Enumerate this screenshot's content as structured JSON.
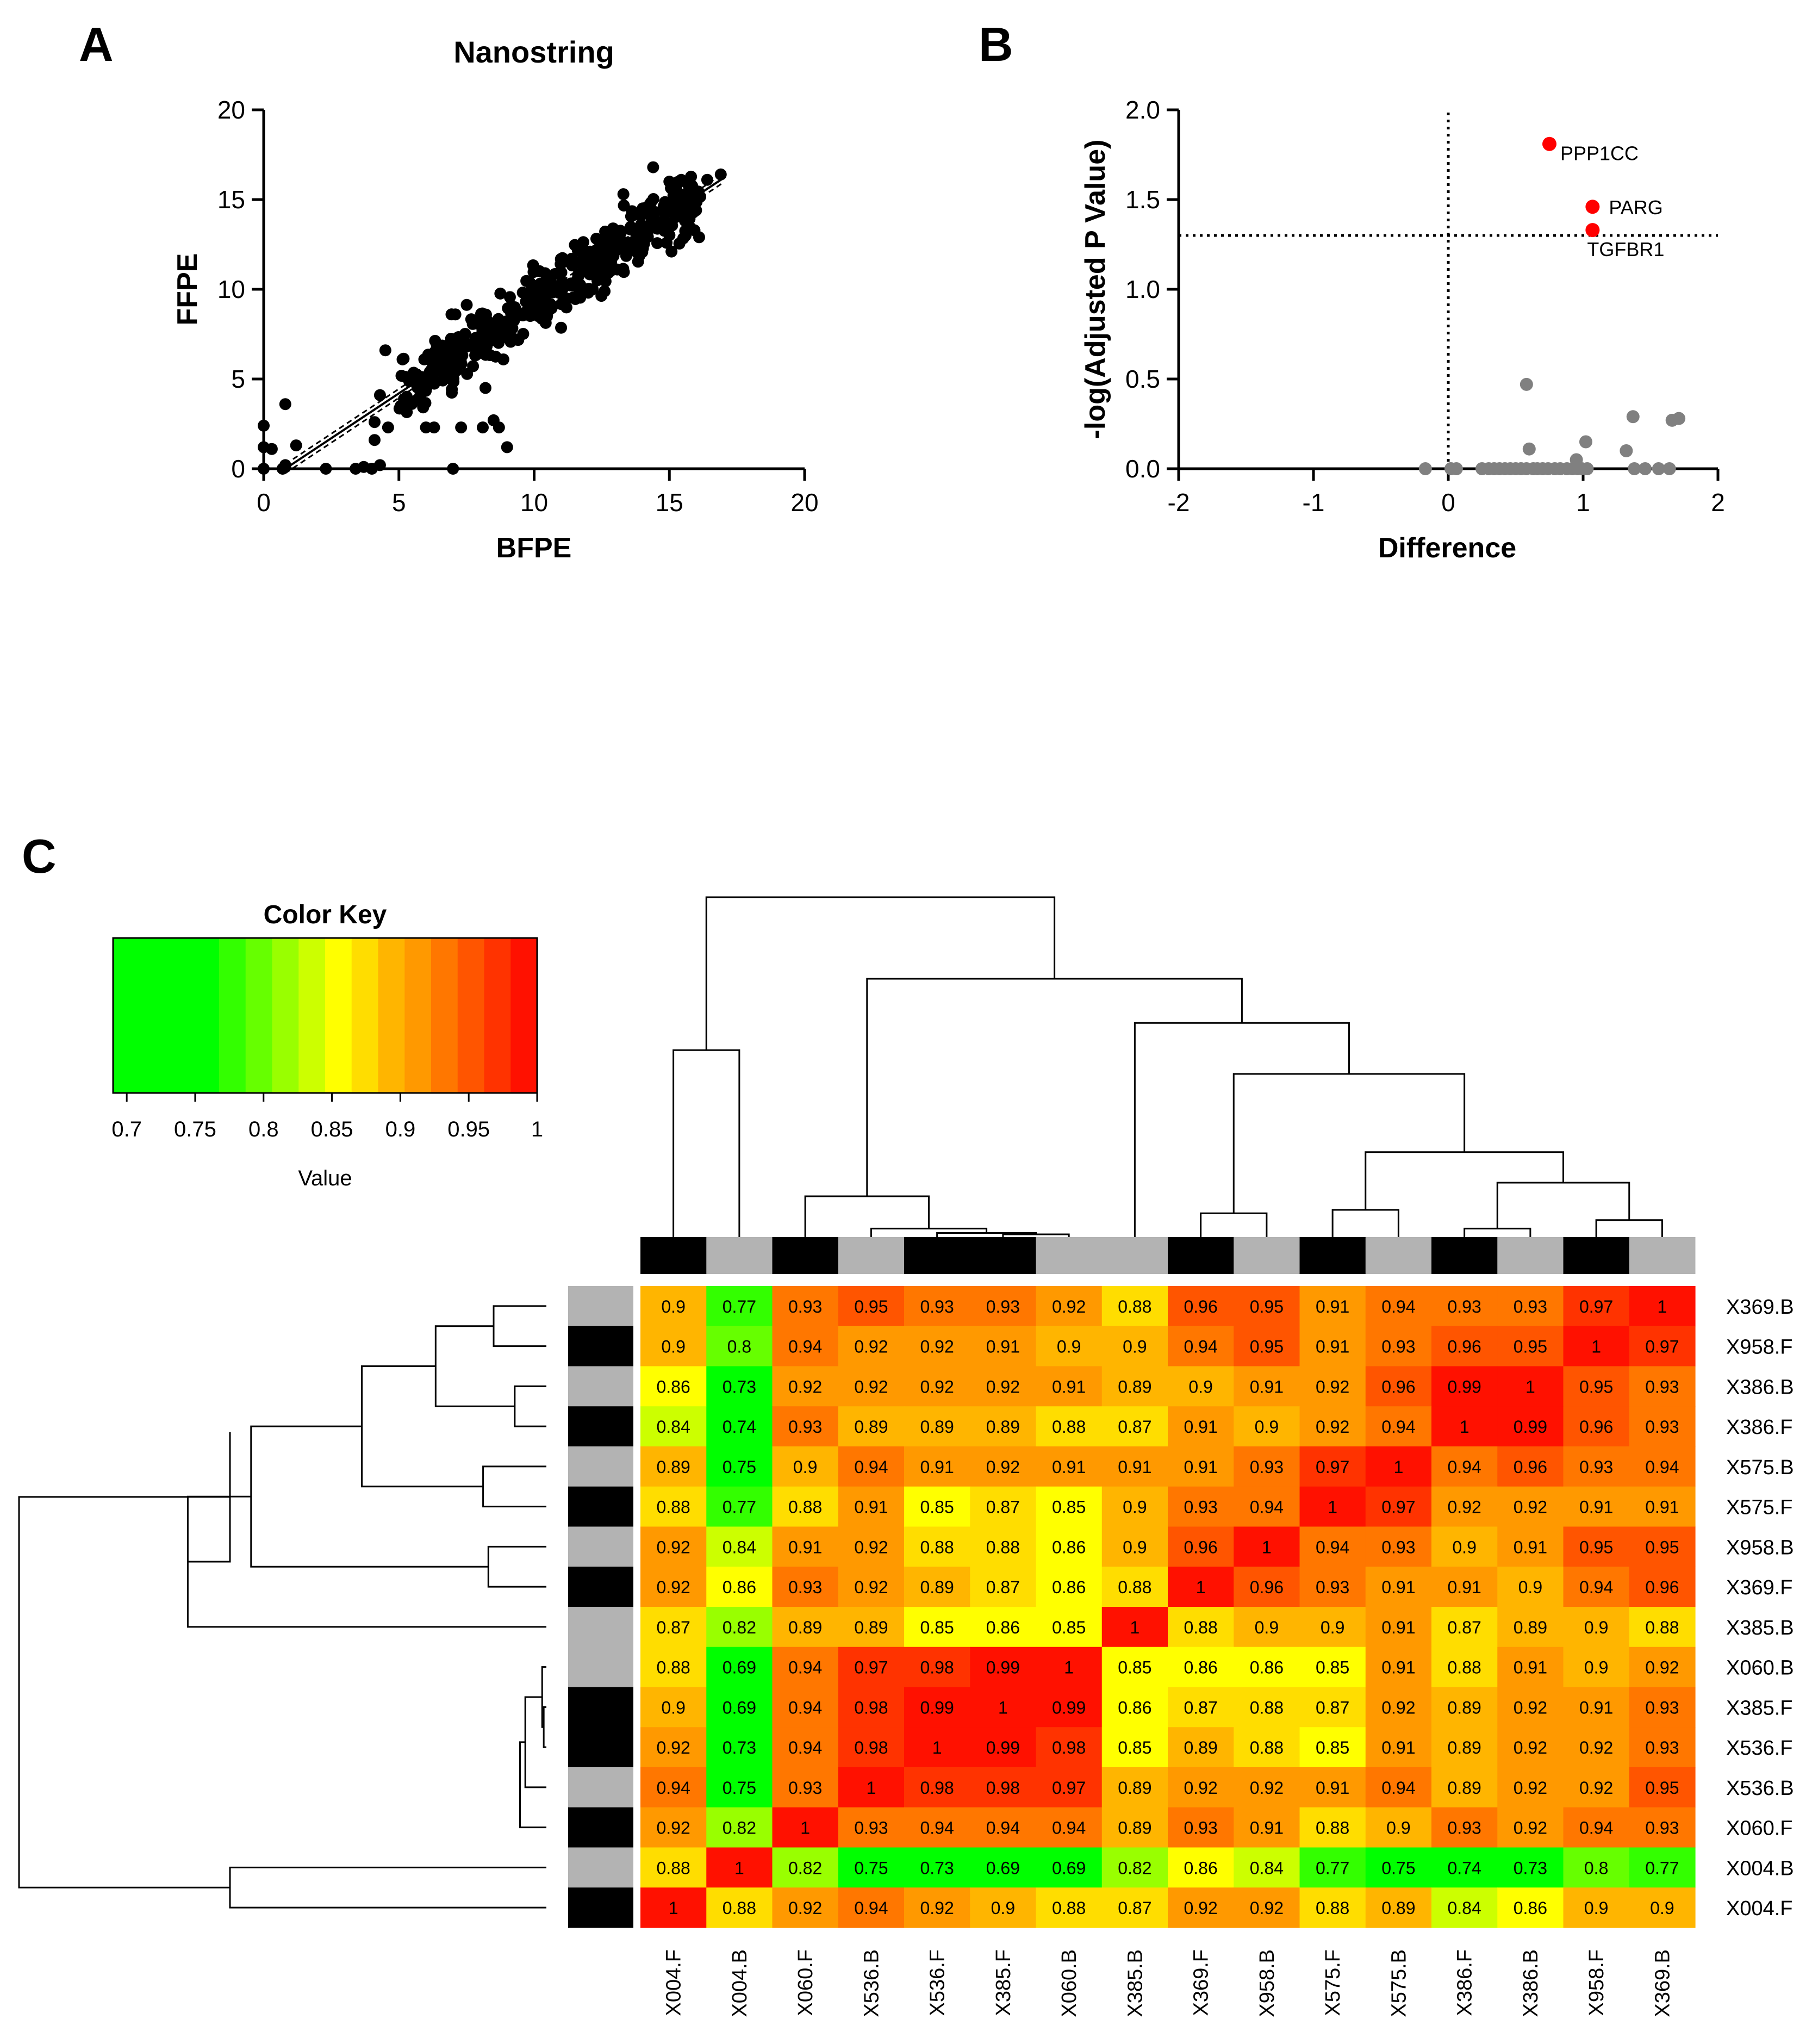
{
  "panels": {
    "a": "A",
    "b": "B",
    "c": "C"
  },
  "chart_data": [
    {
      "id": "A",
      "type": "scatter",
      "title": "Nanostring",
      "xlabel": "BFPE",
      "ylabel": "FFPE",
      "xlim": [
        0,
        20
      ],
      "ylim": [
        0,
        20
      ],
      "xticks": [
        "0",
        "5",
        "10",
        "15",
        "20"
      ],
      "yticks": [
        "0",
        "5",
        "10",
        "15",
        "20"
      ],
      "fit": {
        "slope": 1.0,
        "intercept": -0.8,
        "x_range": [
          0.8,
          17.0
        ]
      },
      "band": {
        "offset": 0.25
      },
      "outliers": [
        [
          0,
          0
        ],
        [
          0,
          1.2
        ],
        [
          0,
          2.4
        ],
        [
          0.3,
          1.1
        ],
        [
          0.7,
          0
        ],
        [
          0.8,
          0.2
        ],
        [
          0.8,
          3.6
        ],
        [
          1.2,
          1.3
        ],
        [
          2.3,
          0
        ],
        [
          3.4,
          0
        ],
        [
          3.7,
          0.1
        ],
        [
          4.0,
          0
        ],
        [
          4.3,
          0.2
        ],
        [
          4.1,
          1.6
        ],
        [
          4.1,
          2.6
        ],
        [
          4.3,
          4.1
        ],
        [
          4.6,
          2.3
        ],
        [
          4.5,
          6.6
        ],
        [
          5.2,
          3.6
        ],
        [
          6.0,
          2.3
        ],
        [
          6.3,
          2.3
        ],
        [
          7.0,
          0
        ],
        [
          7.3,
          2.3
        ],
        [
          6.4,
          6.9
        ],
        [
          8.1,
          2.3
        ],
        [
          8.5,
          2.7
        ],
        [
          8.7,
          2.3
        ],
        [
          9.0,
          1.2
        ],
        [
          8.2,
          4.5
        ],
        [
          14.4,
          16.8
        ],
        [
          15.0,
          16.0
        ],
        [
          15.3,
          14.7
        ],
        [
          15.6,
          13.0
        ],
        [
          16.1,
          12.9
        ],
        [
          16.4,
          16.1
        ],
        [
          16.9,
          16.4
        ],
        [
          13.3,
          15.3
        ],
        [
          12.0,
          11.4
        ]
      ],
      "cloud": {
        "count": 430,
        "x_range": [
          5,
          16.2
        ],
        "slope": 1.0,
        "intercept": -0.8,
        "spread": 1.0
      }
    },
    {
      "id": "B",
      "type": "scatter",
      "xlabel": "Difference",
      "ylabel": "-log(Adjusted P Value)",
      "xlim": [
        -2,
        2
      ],
      "ylim": [
        0,
        2.0
      ],
      "xticks": [
        "-2",
        "-1",
        "0",
        "1",
        "2"
      ],
      "yticks": [
        "0.0",
        "0.5",
        "1.0",
        "1.5",
        "2.0"
      ],
      "hline": 1.3,
      "vline": 0,
      "significant": [
        {
          "x": 0.75,
          "y": 1.81,
          "label": "PPP1CC"
        },
        {
          "x": 1.07,
          "y": 1.46,
          "label": "PARG"
        },
        {
          "x": 1.07,
          "y": 1.33,
          "label": "TGFBR1"
        }
      ],
      "points": [
        [
          -0.17,
          0
        ],
        [
          0.02,
          0
        ],
        [
          0.06,
          0
        ],
        [
          0.25,
          0
        ],
        [
          0.3,
          0
        ],
        [
          0.34,
          0
        ],
        [
          0.38,
          0
        ],
        [
          0.42,
          0
        ],
        [
          0.46,
          0
        ],
        [
          0.5,
          0
        ],
        [
          0.54,
          0
        ],
        [
          0.58,
          0
        ],
        [
          0.63,
          0
        ],
        [
          0.66,
          0
        ],
        [
          0.7,
          0
        ],
        [
          0.74,
          0
        ],
        [
          0.79,
          0
        ],
        [
          0.83,
          0
        ],
        [
          0.88,
          0
        ],
        [
          0.92,
          0
        ],
        [
          0.96,
          0
        ],
        [
          0.99,
          0
        ],
        [
          1.03,
          0
        ],
        [
          0.6,
          0.11
        ],
        [
          0.95,
          0.05
        ],
        [
          0.58,
          0.47
        ],
        [
          1.02,
          0.15
        ],
        [
          1.32,
          0.1
        ],
        [
          1.37,
          0.29
        ],
        [
          1.38,
          0
        ],
        [
          1.46,
          0
        ],
        [
          1.56,
          0
        ],
        [
          1.64,
          0
        ],
        [
          1.66,
          0.27
        ],
        [
          1.71,
          0.28
        ]
      ]
    },
    {
      "id": "C",
      "type": "heatmap",
      "color_key": {
        "title": "Color Key",
        "xlabel": "Value",
        "ticks": [
          "0.7",
          "0.75",
          "0.8",
          "0.85",
          "0.9",
          "0.95",
          "1"
        ],
        "colors": [
          "#00ff00",
          "#00ff00",
          "#00ff00",
          "#00ff00",
          "#33ff00",
          "#66ff00",
          "#99ff00",
          "#ccff00",
          "#ffff00",
          "#ffdd00",
          "#ffb500",
          "#ff9900",
          "#ff7700",
          "#ff5500",
          "#ff3300",
          "#ff1100"
        ]
      },
      "columns": [
        "X004.F",
        "X004.B",
        "X060.F",
        "X536.B",
        "X536.F",
        "X385.F",
        "X060.B",
        "X385.B",
        "X369.F",
        "X958.B",
        "X575.F",
        "X575.B",
        "X386.F",
        "X386.B",
        "X958.F",
        "X369.B"
      ],
      "column_groups": [
        1,
        0,
        1,
        0,
        1,
        1,
        0,
        0,
        1,
        0,
        1,
        0,
        1,
        0,
        1,
        0
      ],
      "rows": [
        "X369.B",
        "X958.F",
        "X386.B",
        "X386.F",
        "X575.B",
        "X575.F",
        "X958.B",
        "X369.F",
        "X385.B",
        "X060.B",
        "X385.F",
        "X536.F",
        "X536.B",
        "X060.F",
        "X004.B",
        "X004.F"
      ],
      "row_groups": [
        0,
        1,
        0,
        1,
        0,
        1,
        0,
        1,
        0,
        0,
        1,
        1,
        0,
        1,
        0,
        1
      ],
      "group_colors": [
        "#b3b3b3",
        "#000000"
      ],
      "values": [
        [
          0.9,
          0.77,
          0.93,
          0.95,
          0.93,
          0.93,
          0.92,
          0.88,
          0.96,
          0.95,
          0.91,
          0.94,
          0.93,
          0.93,
          0.97,
          1
        ],
        [
          0.9,
          0.8,
          0.94,
          0.92,
          0.92,
          0.91,
          0.9,
          0.9,
          0.94,
          0.95,
          0.91,
          0.93,
          0.96,
          0.95,
          1,
          0.97
        ],
        [
          0.86,
          0.73,
          0.92,
          0.92,
          0.92,
          0.92,
          0.91,
          0.89,
          0.9,
          0.91,
          0.92,
          0.96,
          0.99,
          1,
          0.95,
          0.93
        ],
        [
          0.84,
          0.74,
          0.93,
          0.89,
          0.89,
          0.89,
          0.88,
          0.87,
          0.91,
          0.9,
          0.92,
          0.94,
          1,
          0.99,
          0.96,
          0.93
        ],
        [
          0.89,
          0.75,
          0.9,
          0.94,
          0.91,
          0.92,
          0.91,
          0.91,
          0.91,
          0.93,
          0.97,
          1,
          0.94,
          0.96,
          0.93,
          0.94
        ],
        [
          0.88,
          0.77,
          0.88,
          0.91,
          0.85,
          0.87,
          0.85,
          0.9,
          0.93,
          0.94,
          1,
          0.97,
          0.92,
          0.92,
          0.91,
          0.91
        ],
        [
          0.92,
          0.84,
          0.91,
          0.92,
          0.88,
          0.88,
          0.86,
          0.9,
          0.96,
          1,
          0.94,
          0.93,
          0.9,
          0.91,
          0.95,
          0.95
        ],
        [
          0.92,
          0.86,
          0.93,
          0.92,
          0.89,
          0.87,
          0.86,
          0.88,
          1,
          0.96,
          0.93,
          0.91,
          0.91,
          0.9,
          0.94,
          0.96
        ],
        [
          0.87,
          0.82,
          0.89,
          0.89,
          0.85,
          0.86,
          0.85,
          1,
          0.88,
          0.9,
          0.9,
          0.91,
          0.87,
          0.89,
          0.9,
          0.88
        ],
        [
          0.88,
          0.69,
          0.94,
          0.97,
          0.98,
          0.99,
          1,
          0.85,
          0.86,
          0.86,
          0.85,
          0.91,
          0.88,
          0.91,
          0.9,
          0.92
        ],
        [
          0.9,
          0.69,
          0.94,
          0.98,
          0.99,
          1,
          0.99,
          0.86,
          0.87,
          0.88,
          0.87,
          0.92,
          0.89,
          0.92,
          0.91,
          0.93
        ],
        [
          0.92,
          0.73,
          0.94,
          0.98,
          1,
          0.99,
          0.98,
          0.85,
          0.89,
          0.88,
          0.85,
          0.91,
          0.89,
          0.92,
          0.92,
          0.93
        ],
        [
          0.94,
          0.75,
          0.93,
          1,
          0.98,
          0.98,
          0.97,
          0.89,
          0.92,
          0.92,
          0.91,
          0.94,
          0.89,
          0.92,
          0.92,
          0.95
        ],
        [
          0.92,
          0.82,
          1,
          0.93,
          0.94,
          0.94,
          0.94,
          0.89,
          0.93,
          0.91,
          0.88,
          0.9,
          0.93,
          0.92,
          0.94,
          0.93
        ],
        [
          0.88,
          1,
          0.82,
          0.75,
          0.73,
          0.69,
          0.69,
          0.82,
          0.86,
          0.84,
          0.77,
          0.75,
          0.74,
          0.73,
          0.8,
          0.77
        ],
        [
          1,
          0.88,
          0.92,
          0.94,
          0.92,
          0.9,
          0.88,
          0.87,
          0.92,
          0.92,
          0.88,
          0.89,
          0.84,
          0.86,
          0.9,
          0.9
        ]
      ]
    }
  ]
}
